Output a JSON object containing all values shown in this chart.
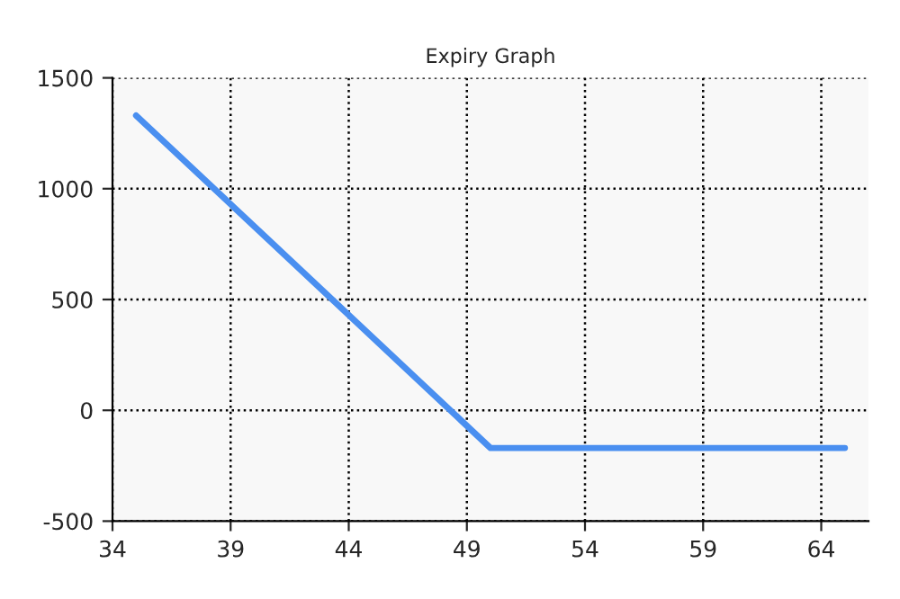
{
  "chart_data": {
    "type": "line",
    "title": "Expiry Graph",
    "series": [
      {
        "color": "#4a8ff0",
        "x": [
          35,
          50,
          65
        ],
        "values": [
          1330,
          -170,
          -170
        ]
      }
    ],
    "xlim": [
      34,
      66
    ],
    "xticks": [
      34,
      39,
      44,
      49,
      54,
      59,
      64
    ],
    "ylim": [
      -500,
      1500
    ],
    "yticks": [
      -500,
      0,
      500,
      1000,
      1500
    ],
    "grid": true,
    "line_style": "solid",
    "marker": "none"
  }
}
